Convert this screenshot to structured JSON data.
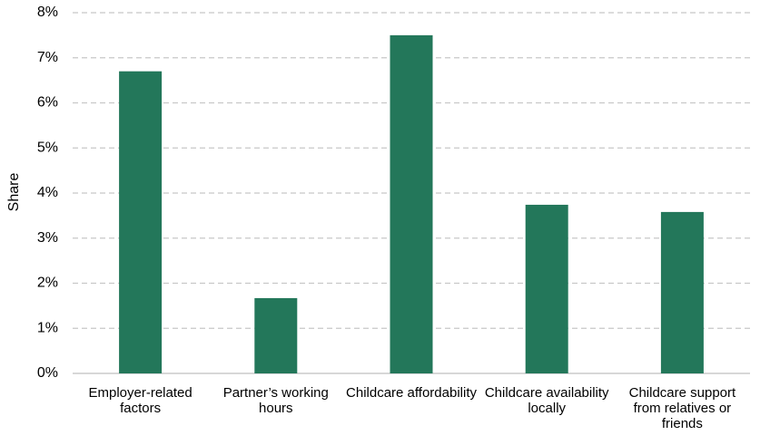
{
  "chart_data": {
    "type": "bar",
    "y_label": "Share",
    "categories": [
      "Employer-related factors",
      "Partner’s working hours",
      "Childcare affordability",
      "Childcare availability locally",
      "Childcare support from relatives or friends"
    ],
    "values": [
      6.7,
      1.67,
      7.5,
      3.74,
      3.58
    ],
    "color": "#23775a",
    "ylim": [
      0,
      8
    ],
    "yticks": [
      {
        "value": 0,
        "label": "0%"
      },
      {
        "value": 1,
        "label": "1%"
      },
      {
        "value": 2,
        "label": "2%"
      },
      {
        "value": 3,
        "label": "3%"
      },
      {
        "value": 4,
        "label": "4%"
      },
      {
        "value": 5,
        "label": "5%"
      },
      {
        "value": 6,
        "label": "6%"
      },
      {
        "value": 7,
        "label": "7%"
      },
      {
        "value": 8,
        "label": "8%"
      }
    ],
    "grid": true
  }
}
